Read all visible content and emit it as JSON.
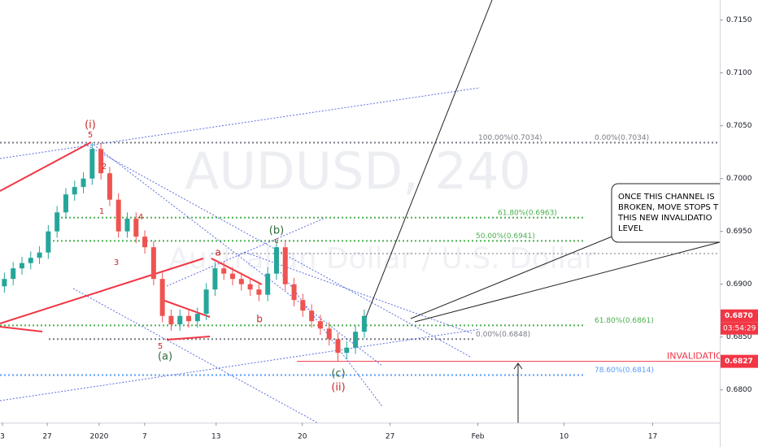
{
  "chart_data": {
    "type": "candlestick",
    "title": "AUDUSD, 240",
    "subtitle": "Australian Dollar / U.S. Dollar",
    "x": [
      0.25,
      0.75,
      1.25,
      1.75,
      2.25,
      2.75,
      3.25,
      3.75,
      4.25,
      4.75,
      5.25,
      5.75,
      6.25,
      6.75,
      7.25,
      7.75,
      8.25,
      8.75,
      9.25,
      9.75,
      10.25,
      10.75,
      11.25,
      11.75,
      12.25,
      12.75,
      13.25,
      13.75,
      14.25,
      14.75,
      15.25,
      15.75,
      16.25,
      16.75,
      17.25,
      17.75,
      18.25,
      18.75,
      19.25,
      19.75,
      20.25,
      20.75
    ],
    "open": [
      0.6898,
      0.6905,
      0.6915,
      0.692,
      0.6925,
      0.693,
      0.695,
      0.6968,
      0.6985,
      0.6992,
      0.7,
      0.7028,
      0.7005,
      0.698,
      0.695,
      0.6962,
      0.6945,
      0.6935,
      0.6905,
      0.687,
      0.6862,
      0.687,
      0.6865,
      0.6872,
      0.6895,
      0.6915,
      0.691,
      0.6905,
      0.69,
      0.6895,
      0.689,
      0.691,
      0.6935,
      0.69,
      0.6885,
      0.6875,
      0.6865,
      0.6858,
      0.6848,
      0.6835,
      0.684,
      0.6855
    ],
    "high": [
      0.6911,
      0.6921,
      0.6926,
      0.6931,
      0.6936,
      0.6956,
      0.6974,
      0.6991,
      0.6998,
      0.7006,
      0.7034,
      0.7034,
      0.7011,
      0.6986,
      0.6968,
      0.6968,
      0.6951,
      0.6941,
      0.6911,
      0.6876,
      0.6876,
      0.6876,
      0.6878,
      0.6901,
      0.6921,
      0.6921,
      0.6916,
      0.6911,
      0.6906,
      0.6901,
      0.6916,
      0.6941,
      0.6941,
      0.6906,
      0.6891,
      0.6881,
      0.6871,
      0.6864,
      0.6854,
      0.6846,
      0.6861,
      0.6876
    ],
    "low": [
      0.6892,
      0.6899,
      0.6909,
      0.6914,
      0.6919,
      0.6924,
      0.6944,
      0.6962,
      0.6979,
      0.6986,
      0.6994,
      0.6999,
      0.6974,
      0.6944,
      0.6944,
      0.6939,
      0.6929,
      0.6899,
      0.6864,
      0.6856,
      0.6856,
      0.6859,
      0.6859,
      0.6866,
      0.6889,
      0.6904,
      0.6899,
      0.6894,
      0.6889,
      0.6884,
      0.6884,
      0.6904,
      0.6894,
      0.6879,
      0.6869,
      0.6859,
      0.6852,
      0.6842,
      0.6827,
      0.6829,
      0.6834,
      0.6849
    ],
    "close": [
      0.6905,
      0.6915,
      0.692,
      0.6925,
      0.693,
      0.695,
      0.6968,
      0.6985,
      0.6992,
      0.7,
      0.7028,
      0.7005,
      0.698,
      0.695,
      0.6962,
      0.6945,
      0.6935,
      0.6905,
      0.687,
      0.6862,
      0.687,
      0.6865,
      0.6872,
      0.6895,
      0.6915,
      0.691,
      0.6905,
      0.69,
      0.6895,
      0.689,
      0.691,
      0.6935,
      0.69,
      0.6885,
      0.6875,
      0.6865,
      0.6858,
      0.6848,
      0.6835,
      0.684,
      0.6855,
      0.687
    ],
    "up_color": "#26a69a",
    "down_color": "#ef5350",
    "xlim": [
      0,
      41
    ],
    "xticks": [
      {
        "value": 0.14,
        "label": "3"
      },
      {
        "value": 2.69,
        "label": "27"
      },
      {
        "value": 5.65,
        "label": "2020"
      },
      {
        "value": 8.24,
        "label": "7"
      },
      {
        "value": 12.31,
        "label": "13"
      },
      {
        "value": 17.22,
        "label": "20"
      },
      {
        "value": 22.22,
        "label": "27"
      },
      {
        "value": 27.22,
        "label": "Feb"
      },
      {
        "value": 32.13,
        "label": "10"
      },
      {
        "value": 37.18,
        "label": "17"
      }
    ],
    "ylim": [
      0.6769,
      0.7169
    ],
    "yticks": [
      {
        "value": 0.715,
        "label": "0.7150"
      },
      {
        "value": 0.71,
        "label": "0.7100"
      },
      {
        "value": 0.705,
        "label": "0.7050"
      },
      {
        "value": 0.7,
        "label": "0.7000"
      },
      {
        "value": 0.695,
        "label": "0.6950"
      },
      {
        "value": 0.69,
        "label": "0.6900"
      },
      {
        "value": 0.685,
        "label": "0.6850"
      },
      {
        "value": 0.68,
        "label": "0.6800"
      }
    ],
    "levels": [
      {
        "value": 0.7034,
        "label": "100.00%(0.7034)",
        "color": "#787b86"
      },
      {
        "value": 0.7034,
        "label": "0.00%(0.7034)",
        "color": "#787b86"
      },
      {
        "value": 0.6963,
        "label": "61.80%(0.6963)",
        "color": "#4caf50"
      },
      {
        "value": 0.6941,
        "label": "50.00%(0.6941)",
        "color": "#4caf50"
      },
      {
        "value": 0.6861,
        "label": "61.80%(0.6861)",
        "color": "#4caf50"
      },
      {
        "value": 0.6848,
        "label": "0.00%(0.6848)",
        "color": "#787b86"
      },
      {
        "value": 0.6814,
        "label": "78.60%(0.6814)",
        "color": "#5b9cf6"
      },
      {
        "value": 0.6827,
        "label": "INVALIDATIO",
        "color": "#f23645"
      }
    ],
    "price_tags": [
      {
        "value": 0.687,
        "label": "0.6870",
        "color": "#f23645"
      },
      {
        "value": 0.6827,
        "label": "0.6827",
        "color": "#f23645"
      }
    ],
    "countdown": "03:54:29",
    "wave_labels": [
      "(i)",
      "5",
      "2",
      "1",
      "4",
      "3",
      "5",
      "(a)",
      "a",
      "b",
      "(b)",
      "c",
      "(c)",
      "(ii)"
    ],
    "note": [
      "ONCE THIS CHANNEL IS",
      "BROKEN, MOVE STOPS T",
      "THIS NEW INVALIDATIO",
      "LEVEL"
    ]
  }
}
